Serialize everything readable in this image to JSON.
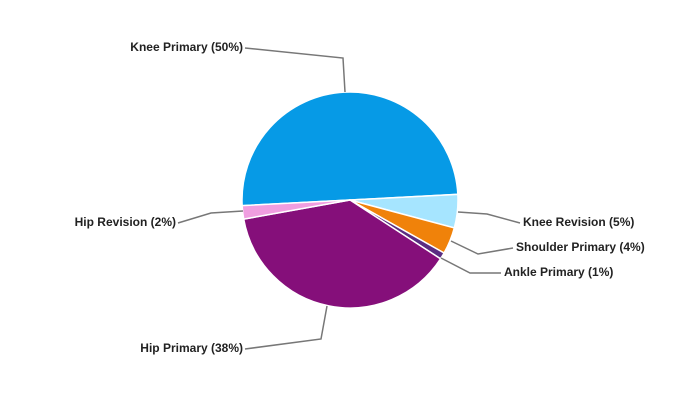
{
  "chart_data": {
    "type": "pie",
    "categories": [
      "Knee Primary (50%)",
      "Knee Revision (5%)",
      "Shoulder Primary (4%)",
      "Ankle Primary (1%)",
      "Hip Primary (38%)",
      "Hip Revision (2%)"
    ],
    "values": [
      50,
      5,
      4,
      1,
      38,
      2
    ],
    "colors": [
      "#069ae6",
      "#a6e5ff",
      "#f0820a",
      "#5a2d82",
      "#850f7a",
      "#f09ee0"
    ]
  }
}
